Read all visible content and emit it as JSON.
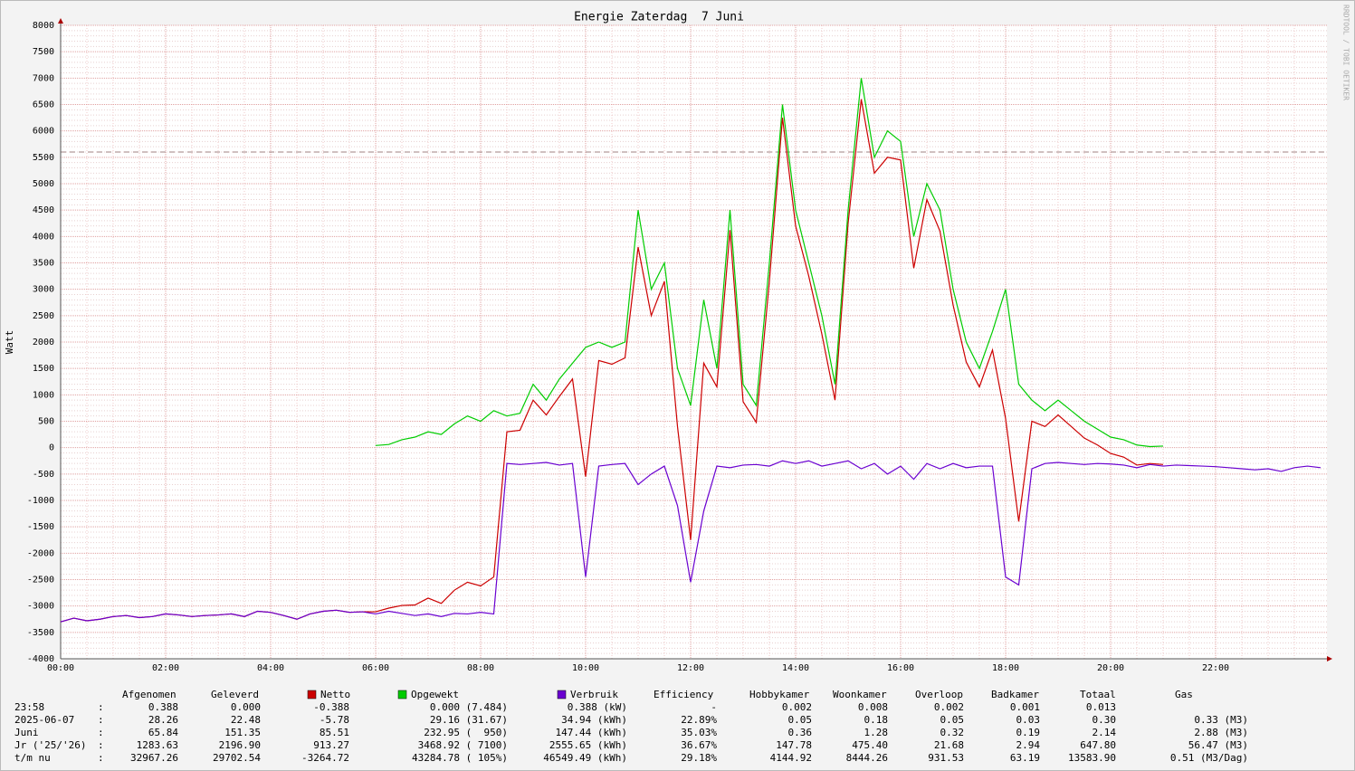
{
  "chart_data": {
    "type": "line",
    "title": "Energie Zaterdag  7 Juni",
    "y_label": "Watt",
    "watermark": "RRDTOOL / TOBI OETIKER",
    "x": [
      0,
      0.25,
      0.5,
      0.75,
      1,
      1.25,
      1.5,
      1.75,
      2,
      2.25,
      2.5,
      2.75,
      3,
      3.25,
      3.5,
      3.75,
      4,
      4.25,
      4.5,
      4.75,
      5,
      5.25,
      5.5,
      5.75,
      6,
      6.25,
      6.5,
      6.75,
      7,
      7.25,
      7.5,
      7.75,
      8,
      8.25,
      8.5,
      8.75,
      9,
      9.25,
      9.5,
      9.75,
      10,
      10.25,
      10.5,
      10.75,
      11,
      11.25,
      11.5,
      11.75,
      12,
      12.25,
      12.5,
      12.75,
      13,
      13.25,
      13.5,
      13.75,
      14,
      14.25,
      14.5,
      14.75,
      15,
      15.25,
      15.5,
      15.75,
      16,
      16.25,
      16.5,
      16.75,
      17,
      17.25,
      17.5,
      17.75,
      18,
      18.25,
      18.5,
      18.75,
      19,
      19.25,
      19.5,
      19.75,
      20,
      20.25,
      20.5,
      20.75,
      21,
      21.25,
      21.5,
      21.75,
      22,
      22.25,
      22.5,
      22.75,
      23,
      23.25,
      23.5,
      23.75,
      24
    ],
    "series": [
      {
        "name": "Netto",
        "color": "#cc0000",
        "values": [
          -3300,
          -3230,
          -3280,
          -3250,
          -3200,
          -3180,
          -3220,
          -3200,
          -3150,
          -3170,
          -3200,
          -3180,
          -3170,
          -3150,
          -3200,
          -3100,
          -3120,
          -3180,
          -3250,
          -3150,
          -3100,
          -3080,
          -3120,
          -3110,
          -3110,
          -3040,
          -2990,
          -2980,
          -2850,
          -2950,
          -2700,
          -2550,
          -2620,
          -2450,
          300,
          330,
          900,
          620,
          970,
          1300,
          -550,
          1650,
          1580,
          1700,
          3800,
          2500,
          3150,
          400,
          -1750,
          1600,
          1150,
          4120,
          870,
          480,
          3150,
          6250,
          4200,
          3250,
          2150,
          900,
          4250,
          6600,
          5200,
          5500,
          5450,
          3400,
          4700,
          4100,
          2700,
          1620,
          1150,
          1850,
          550,
          -1400,
          500,
          400,
          620,
          400,
          180,
          50,
          -110,
          -180,
          -330,
          -300,
          -320,
          null,
          null,
          null,
          null,
          null,
          null,
          null,
          null,
          null,
          null,
          null,
          null
        ]
      },
      {
        "name": "Opgewekt",
        "color": "#00cc00",
        "values": [
          null,
          null,
          null,
          null,
          null,
          null,
          null,
          null,
          null,
          null,
          null,
          null,
          null,
          null,
          null,
          null,
          null,
          null,
          null,
          null,
          null,
          null,
          null,
          null,
          40,
          60,
          150,
          200,
          300,
          250,
          450,
          600,
          500,
          700,
          600,
          650,
          1200,
          900,
          1300,
          1600,
          1900,
          2000,
          1900,
          2000,
          4500,
          3000,
          3500,
          1500,
          800,
          2800,
          1500,
          4500,
          1200,
          800,
          3500,
          6500,
          4500,
          3500,
          2500,
          1200,
          4500,
          7000,
          5500,
          6000,
          5800,
          4000,
          5000,
          4500,
          3000,
          2000,
          1500,
          2200,
          3000,
          1200,
          900,
          700,
          900,
          700,
          500,
          350,
          200,
          150,
          50,
          20,
          30,
          null,
          null,
          null,
          null,
          null,
          null,
          null,
          null,
          null,
          null,
          null,
          null
        ]
      },
      {
        "name": "Verbruik",
        "color": "#6a00d0",
        "values": [
          -3300,
          -3230,
          -3280,
          -3250,
          -3200,
          -3180,
          -3220,
          -3200,
          -3150,
          -3170,
          -3200,
          -3180,
          -3170,
          -3150,
          -3200,
          -3100,
          -3120,
          -3180,
          -3250,
          -3150,
          -3100,
          -3080,
          -3120,
          -3110,
          -3150,
          -3100,
          -3140,
          -3180,
          -3150,
          -3200,
          -3140,
          -3150,
          -3120,
          -3150,
          -300,
          -320,
          -300,
          -280,
          -330,
          -300,
          -2450,
          -350,
          -320,
          -300,
          -700,
          -500,
          -350,
          -1100,
          -2550,
          -1200,
          -350,
          -380,
          -330,
          -320,
          -350,
          -250,
          -300,
          -250,
          -350,
          -300,
          -250,
          -400,
          -300,
          -500,
          -350,
          -600,
          -300,
          -400,
          -300,
          -380,
          -350,
          -350,
          -2450,
          -2600,
          -400,
          -300,
          -280,
          -300,
          -320,
          -300,
          -310,
          -330,
          -380,
          -320,
          -350,
          -330,
          -340,
          -350,
          -360,
          -380,
          -400,
          -420,
          -400,
          -450,
          -380,
          -350,
          -380
        ]
      }
    ],
    "reference_line": 5600,
    "xlim": [
      0,
      24
    ],
    "xticks": [
      {
        "value": 0,
        "label": "00:00"
      },
      {
        "value": 2,
        "label": "02:00"
      },
      {
        "value": 4,
        "label": "04:00"
      },
      {
        "value": 6,
        "label": "06:00"
      },
      {
        "value": 8,
        "label": "08:00"
      },
      {
        "value": 10,
        "label": "10:00"
      },
      {
        "value": 12,
        "label": "12:00"
      },
      {
        "value": 14,
        "label": "14:00"
      },
      {
        "value": 16,
        "label": "16:00"
      },
      {
        "value": 18,
        "label": "18:00"
      },
      {
        "value": 20,
        "label": "20:00"
      },
      {
        "value": 22,
        "label": "22:00"
      }
    ],
    "ylim": [
      -4000,
      8000
    ],
    "yticks": [
      -4000,
      -3500,
      -3000,
      -2500,
      -2000,
      -1500,
      -1000,
      -500,
      0,
      500,
      1000,
      1500,
      2000,
      2500,
      3000,
      3500,
      4000,
      4500,
      5000,
      5500,
      6000,
      6500,
      7000,
      7500,
      8000
    ],
    "grid": true
  },
  "table": {
    "headers": [
      "Afgenomen",
      "Geleverd",
      "Efficiency",
      "Hobbykamer",
      "Woonkamer",
      "Overloop",
      "Badkamer",
      "Totaal",
      "Gas"
    ],
    "rows": [
      [
        "23:58",
        ":",
        "0.388",
        "0.000",
        "-0.388",
        "0.000 (7.484)",
        "0.388 (kW)",
        "-",
        "0.002",
        "0.008",
        "0.002",
        "0.001",
        "0.013",
        null
      ],
      [
        "2025-06-07",
        ":",
        "28.26",
        "22.48",
        "-5.78",
        "29.16 (31.67)",
        "34.94 (kWh)",
        "22.89%",
        "0.05",
        "0.18",
        "0.05",
        "0.03",
        "0.30",
        "0.33 (M3)"
      ],
      [
        "Juni",
        ":",
        "65.84",
        "151.35",
        "85.51",
        "232.95 (  950)",
        "147.44 (kWh)",
        "35.03%",
        "0.36",
        "1.28",
        "0.32",
        "0.19",
        "2.14",
        "2.88 (M3)"
      ],
      [
        "Jr ('25/'26)",
        ":",
        "1283.63",
        "2196.90",
        "913.27",
        "3468.92 ( 7100)",
        "2555.65 (kWh)",
        "36.67%",
        "147.78",
        "475.40",
        "21.68",
        "2.94",
        "647.80",
        "56.47 (M3)"
      ],
      [
        "t/m nu",
        ":",
        "32967.26",
        "29702.54",
        "-3264.72",
        "43284.78 ( 105%)",
        "46549.49 (kWh)",
        "29.18%",
        "4144.92",
        "8444.26",
        "931.53",
        "63.19",
        "13583.90",
        "0.51 (M3/Dag)"
      ]
    ]
  }
}
